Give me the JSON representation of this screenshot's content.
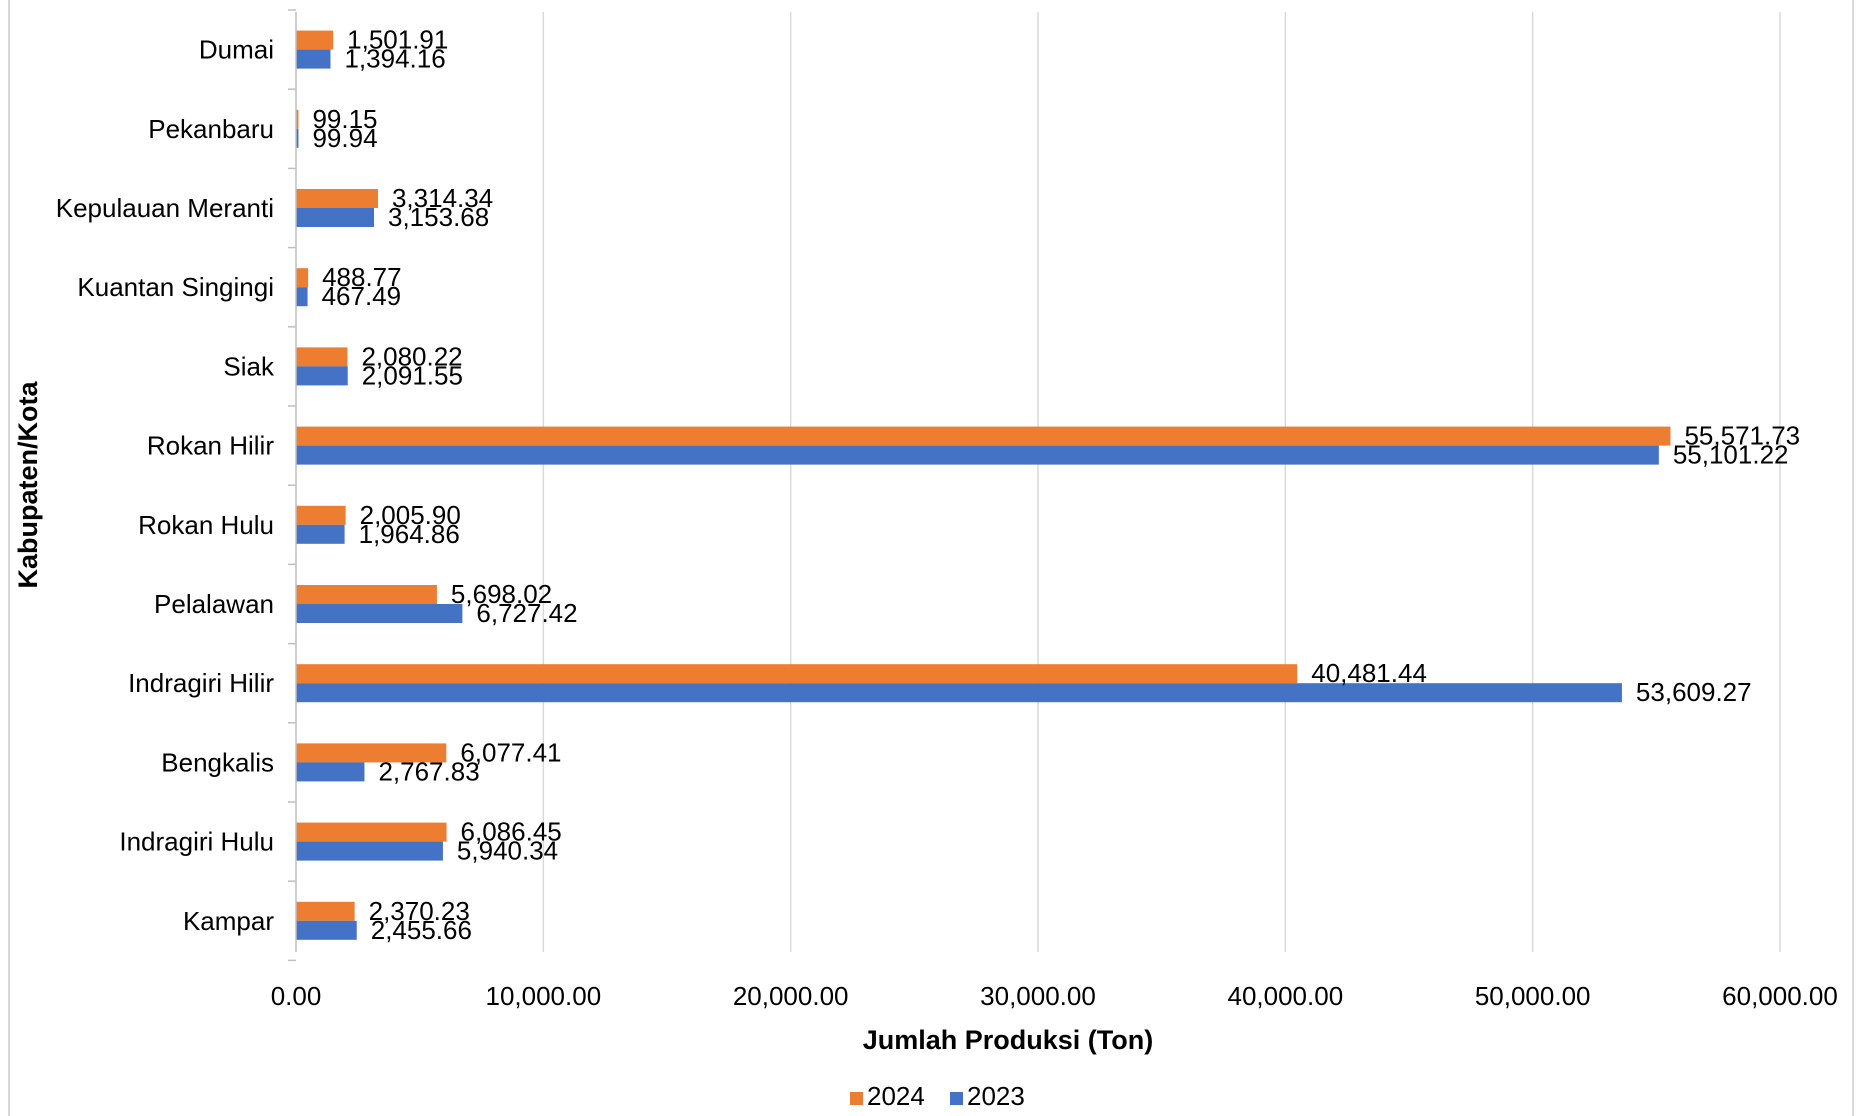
{
  "chart_data": {
    "type": "bar",
    "orientation": "horizontal",
    "categories": [
      "Dumai",
      "Pekanbaru",
      "Kepulauan Meranti",
      "Kuantan Singingi",
      "Siak",
      "Rokan Hilir",
      "Rokan Hulu",
      "Pelalawan",
      "Indragiri Hilir",
      "Bengkalis",
      "Indragiri Hulu",
      "Kampar"
    ],
    "series": [
      {
        "name": "2024",
        "color": "#ED7D31",
        "values": [
          1501.91,
          99.15,
          3314.34,
          488.77,
          2080.22,
          55571.73,
          2005.9,
          5698.02,
          40481.44,
          6077.41,
          6086.45,
          2370.23
        ],
        "labels": [
          "1,501.91",
          "99.15",
          "3,314.34",
          "488.77",
          "2,080.22",
          "55,571.73",
          "2,005.90",
          "5,698.02",
          "40,481.44",
          "6,077.41",
          "6,086.45",
          "2,370.23"
        ]
      },
      {
        "name": "2023",
        "color": "#4472C4",
        "values": [
          1394.16,
          99.94,
          3153.68,
          467.49,
          2091.55,
          55101.22,
          1964.86,
          6727.42,
          53609.27,
          2767.83,
          5940.34,
          2455.66
        ],
        "labels": [
          "1,394.16",
          "99.94",
          "3,153.68",
          "467.49",
          "2,091.55",
          "55,101.22",
          "1,964.86",
          "6,727.42",
          "53,609.27",
          "2,767.83",
          "5,940.34",
          "2,455.66"
        ]
      }
    ],
    "xlim": [
      0,
      60000
    ],
    "xticks": [
      0,
      10000,
      20000,
      30000,
      40000,
      50000,
      60000
    ],
    "xtick_labels": [
      "0.00",
      "10,000.00",
      "20,000.00",
      "30,000.00",
      "40,000.00",
      "50,000.00",
      "60,000.00"
    ],
    "xlabel": "Jumlah Produksi (Ton)",
    "ylabel": "Kabupaten/Kota",
    "grid": "vertical",
    "legend": "bottom-center",
    "gridline_color": "#D9D9D9"
  }
}
